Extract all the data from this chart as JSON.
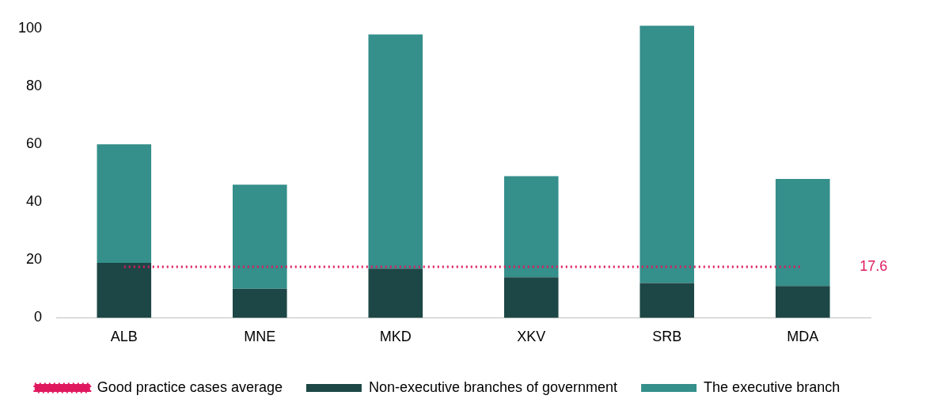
{
  "chart_data": {
    "type": "bar",
    "stacked": true,
    "categories": [
      "ALB",
      "MNE",
      "MKD",
      "XKV",
      "SRB",
      "MDA"
    ],
    "series": [
      {
        "name": "Non-executive branches of government",
        "color": "#1c4746",
        "values": [
          19,
          10,
          17,
          14,
          12,
          11
        ]
      },
      {
        "name": "The executive branch",
        "color": "#358f8b",
        "values": [
          41,
          36,
          81,
          35,
          89,
          37
        ]
      },
      {
        "name": "Good practice cases average",
        "color": "#e0195f",
        "type": "line",
        "line_style": "dotted",
        "marker": "none",
        "values": [
          17.6,
          17.6,
          17.6,
          17.6,
          17.6,
          17.6
        ]
      }
    ],
    "ylim": [
      0,
      102
    ],
    "yticks": [
      0,
      20,
      40,
      60,
      80,
      100
    ],
    "grid": false,
    "legend": "bottom",
    "annotations": [
      "17.6"
    ]
  }
}
